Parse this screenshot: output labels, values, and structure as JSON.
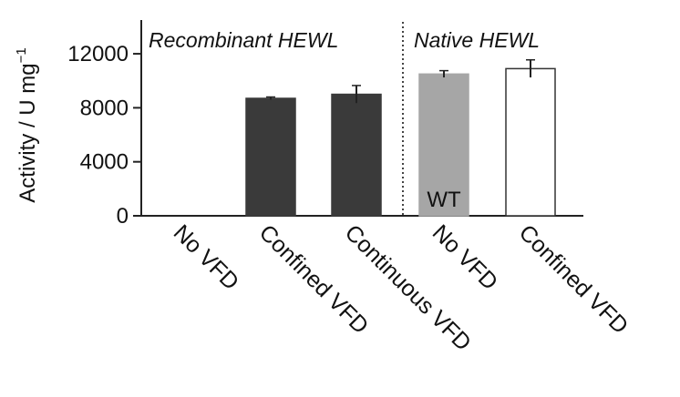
{
  "chart_data": {
    "type": "bar",
    "ylabel": "Activity / U mg",
    "ylabel_superscript": "−1",
    "ylim": [
      0,
      14500
    ],
    "yticks": [
      "0",
      "4000",
      "8000",
      "12000"
    ],
    "ytick_values": [
      0,
      4000,
      8000,
      12000
    ],
    "categories": [
      "No VFD",
      "Confined VFD",
      "Continuous VFD",
      "No VFD",
      "Confined VFD"
    ],
    "values": [
      0,
      8700,
      9000,
      10500,
      10900
    ],
    "errors": [
      0,
      100,
      650,
      250,
      650
    ],
    "bar_colors": [
      "#3a3a3a",
      "#3a3a3a",
      "#3a3a3a",
      "#a6a6a6",
      "#ffffff"
    ],
    "group_labels": [
      "Recombinant HEWL",
      "Native HEWL"
    ],
    "group_spans": [
      [
        0,
        2
      ],
      [
        3,
        4
      ]
    ],
    "annotation": "WT",
    "annotation_category_index": 3,
    "grid": false,
    "legend": "none"
  }
}
